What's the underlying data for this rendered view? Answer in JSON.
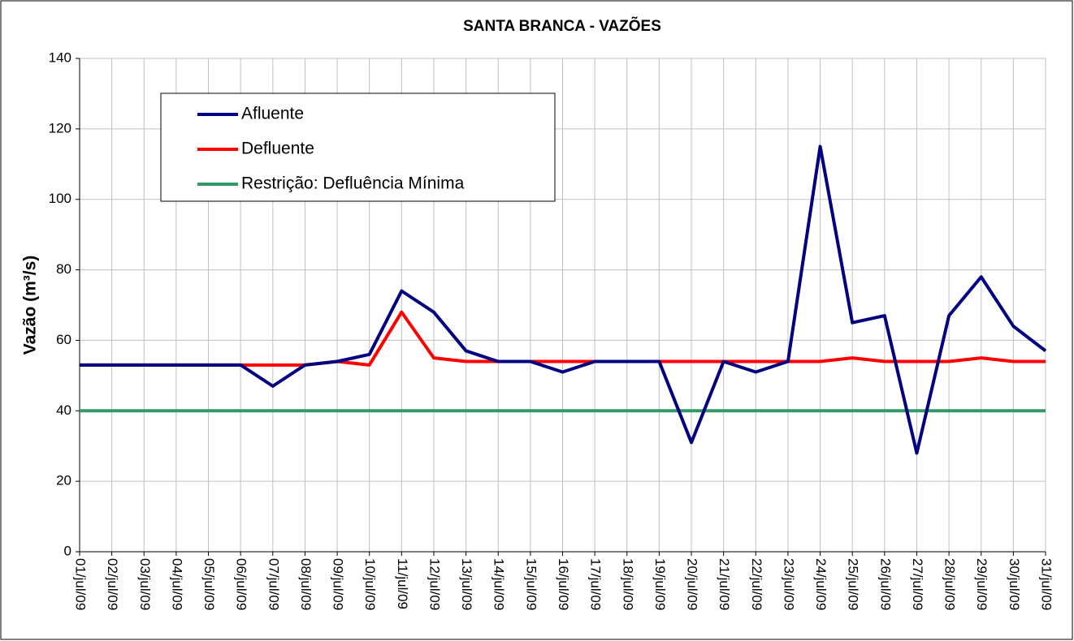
{
  "chart_data": {
    "type": "line",
    "title": "SANTA BRANCA - VAZÕES",
    "y_label": "Vazão (m³/s)",
    "categories": [
      "01/jul/09",
      "02/jul/09",
      "03/jul/09",
      "04/jul/09",
      "05/jul/09",
      "06/jul/09",
      "07/jul/09",
      "08/jul/09",
      "09/jul/09",
      "10/jul/09",
      "11/jul/09",
      "12/jul/09",
      "13/jul/09",
      "14/jul/09",
      "15/jul/09",
      "16/jul/09",
      "17/jul/09",
      "18/jul/09",
      "19/jul/09",
      "20/jul/09",
      "21/jul/09",
      "22/jul/09",
      "23/jul/09",
      "24/jul/09",
      "25/jul/09",
      "26/jul/09",
      "27/jul/09",
      "28/jul/09",
      "29/jul/09",
      "30/jul/09",
      "31/jul/09"
    ],
    "series": [
      {
        "name": "Afluente",
        "color": "#000080",
        "values": [
          53,
          53,
          53,
          53,
          53,
          53,
          47,
          53,
          54,
          56,
          74,
          68,
          57,
          54,
          54,
          51,
          54,
          54,
          54,
          31,
          54,
          51,
          54,
          115,
          65,
          67,
          28,
          67,
          78,
          64,
          57
        ]
      },
      {
        "name": "Defluente",
        "color": "#ff0000",
        "values": [
          53,
          53,
          53,
          53,
          53,
          53,
          53,
          53,
          54,
          53,
          68,
          55,
          54,
          54,
          54,
          54,
          54,
          54,
          54,
          54,
          54,
          54,
          54,
          54,
          55,
          54,
          54,
          54,
          55,
          54,
          54
        ]
      },
      {
        "name": "Restrição: Defluência Mínima",
        "color": "#339966",
        "values": [
          40,
          40,
          40,
          40,
          40,
          40,
          40,
          40,
          40,
          40,
          40,
          40,
          40,
          40,
          40,
          40,
          40,
          40,
          40,
          40,
          40,
          40,
          40,
          40,
          40,
          40,
          40,
          40,
          40,
          40,
          40
        ]
      }
    ],
    "ylim": [
      0,
      140
    ],
    "yticks": [
      0,
      20,
      40,
      60,
      80,
      100,
      120,
      140
    ],
    "grid": true
  }
}
